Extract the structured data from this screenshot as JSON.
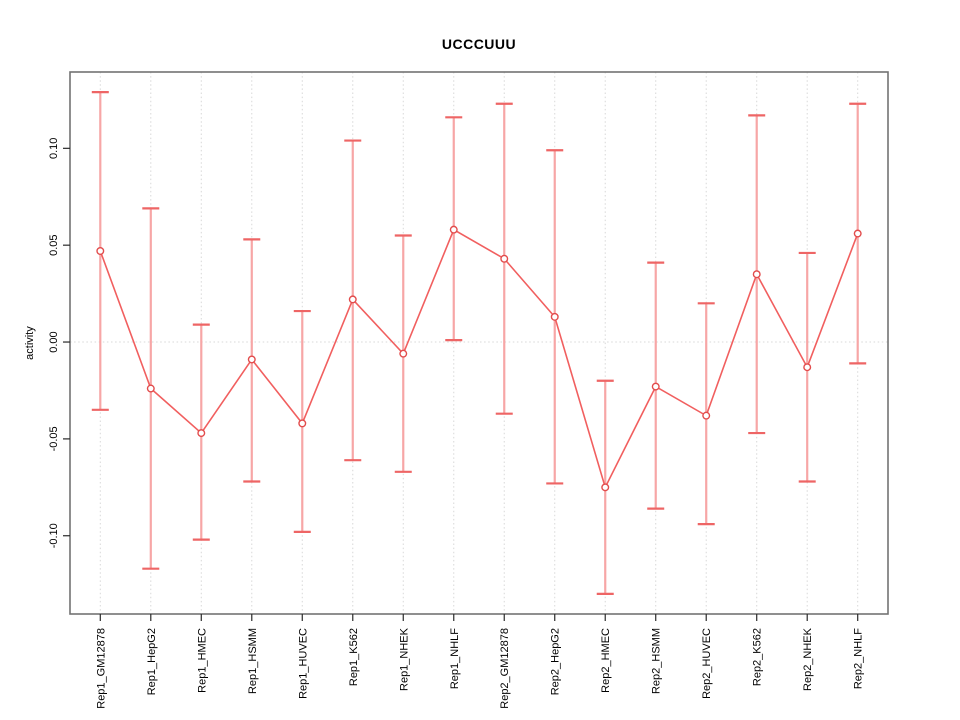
{
  "chart_data": {
    "type": "line",
    "subtype": "points-with-error-bars",
    "title": "UCCCUUU",
    "xlabel": "",
    "ylabel": "activity",
    "categories": [
      "Rep1_GM12878",
      "Rep1_HepG2",
      "Rep1_HMEC",
      "Rep1_HSMM",
      "Rep1_HUVEC",
      "Rep1_K562",
      "Rep1_NHEK",
      "Rep1_NHLF",
      "Rep2_GM12878",
      "Rep2_HepG2",
      "Rep2_HMEC",
      "Rep2_HSMM",
      "Rep2_HUVEC",
      "Rep2_K562",
      "Rep2_NHEK",
      "Rep2_NHLF"
    ],
    "series": [
      {
        "name": "activity",
        "values": [
          0.047,
          -0.024,
          -0.047,
          -0.009,
          -0.042,
          0.022,
          -0.006,
          0.058,
          0.043,
          0.013,
          -0.075,
          -0.023,
          -0.038,
          0.035,
          -0.013,
          0.056
        ],
        "error_upper": [
          0.129,
          0.069,
          0.009,
          0.053,
          0.016,
          0.104,
          0.055,
          0.116,
          0.123,
          0.099,
          -0.02,
          0.041,
          0.02,
          0.117,
          0.046,
          0.123
        ],
        "error_lower": [
          -0.035,
          -0.117,
          -0.102,
          -0.072,
          -0.098,
          -0.061,
          -0.067,
          0.001,
          -0.037,
          -0.073,
          -0.13,
          -0.086,
          -0.094,
          -0.047,
          -0.072,
          -0.011
        ]
      }
    ],
    "ylim": [
      -0.1404,
      0.1394
    ],
    "xlim": [
      0.4,
      16.6
    ],
    "yticks": {
      "values": [
        -0.1,
        -0.05,
        0.0,
        0.05,
        0.1
      ],
      "labels": [
        "-0.10",
        "-0.05",
        "0.00",
        "0.05",
        "0.10"
      ]
    },
    "grid": {
      "vertical": "dotted gridline at every category",
      "horizontal": "dotted gridline at y=0 only"
    },
    "legend": "none",
    "tick_label_rotation": -90,
    "colors": {
      "point": "#e24c4c",
      "point_fill": "#ffffff",
      "line": "#f15f5f",
      "error_bar": "#f7a6a6",
      "error_cap": "#ee6565",
      "grid": "#d8d8d8",
      "frame": "#737373",
      "tick": "#2a2a2a",
      "text": "#000000",
      "background": "#ffffff"
    }
  }
}
